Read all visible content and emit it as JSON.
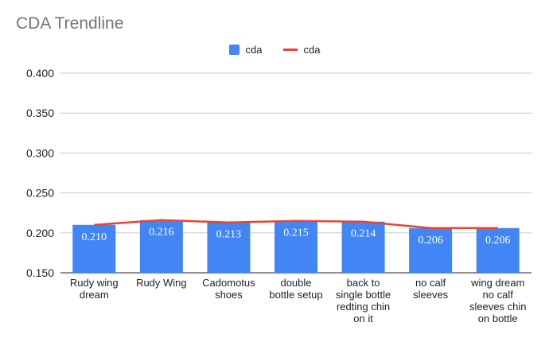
{
  "chart_data": {
    "type": "bar",
    "title": "CDA Trendline",
    "legend_position": "top",
    "grid": true,
    "ylim": [
      0.15,
      0.4
    ],
    "y_ticks": [
      "0.400",
      "0.350",
      "0.300",
      "0.250",
      "0.200",
      "0.150"
    ],
    "y_tick_values": [
      0.4,
      0.35,
      0.3,
      0.25,
      0.2,
      0.15
    ],
    "categories": [
      [
        "Rudy wing",
        "dream"
      ],
      [
        "Rudy Wing"
      ],
      [
        "Cadomotus",
        "shoes"
      ],
      [
        "double",
        "bottle setup"
      ],
      [
        "back to",
        "single bottle",
        "redting chin",
        "on it"
      ],
      [
        "no calf",
        "sleeves"
      ],
      [
        "wing dream",
        "no calf",
        "sleeves chin",
        "on bottle"
      ]
    ],
    "series": [
      {
        "name": "cda",
        "type": "bar",
        "color": "#4285f4",
        "values": [
          0.21,
          0.216,
          0.213,
          0.215,
          0.214,
          0.206,
          0.206
        ],
        "labels": [
          "0.210",
          "0.216",
          "0.213",
          "0.215",
          "0.214",
          "0.206",
          "0.206"
        ]
      },
      {
        "name": "cda",
        "type": "line",
        "color": "#ea4335",
        "values": [
          0.21,
          0.216,
          0.213,
          0.215,
          0.214,
          0.206,
          0.206
        ]
      }
    ],
    "colors": {
      "grid": "#cccccc",
      "axis": "#222222"
    }
  }
}
